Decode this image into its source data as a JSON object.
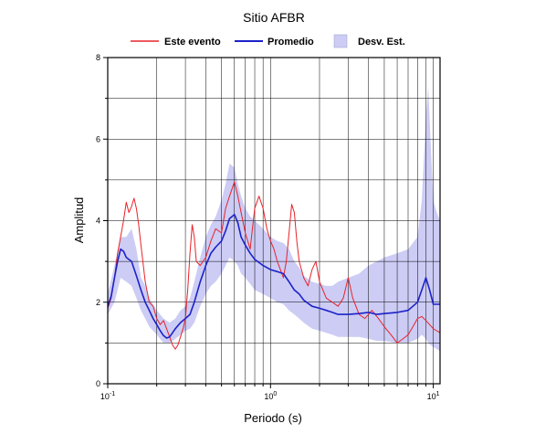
{
  "chart_data": {
    "type": "line",
    "title": "Sitio AFBR",
    "xlabel": "Periodo (s)",
    "ylabel": "Amplitud",
    "x_scale": "log",
    "xlim": [
      0.1,
      11
    ],
    "ylim": [
      0,
      8
    ],
    "grid": true,
    "legend_position": "top",
    "x_ticks": [
      {
        "value": 0.1,
        "base": "10",
        "exp": "-1"
      },
      {
        "value": 1,
        "base": "10",
        "exp": "0"
      },
      {
        "value": 10,
        "base": "10",
        "exp": "1"
      }
    ],
    "y_ticks": [
      "0",
      "2",
      "4",
      "6",
      "8"
    ],
    "series": [
      {
        "name": "Este evento",
        "kind": "line",
        "color": "#e8232a",
        "points": [
          [
            0.1,
            1.85
          ],
          [
            0.105,
            2.1
          ],
          [
            0.11,
            2.6
          ],
          [
            0.115,
            3.2
          ],
          [
            0.12,
            3.6
          ],
          [
            0.125,
            4.0
          ],
          [
            0.13,
            4.45
          ],
          [
            0.135,
            4.2
          ],
          [
            0.14,
            4.35
          ],
          [
            0.145,
            4.55
          ],
          [
            0.15,
            4.3
          ],
          [
            0.155,
            3.9
          ],
          [
            0.16,
            3.4
          ],
          [
            0.17,
            2.5
          ],
          [
            0.18,
            2.0
          ],
          [
            0.19,
            1.9
          ],
          [
            0.2,
            1.6
          ],
          [
            0.21,
            1.45
          ],
          [
            0.22,
            1.55
          ],
          [
            0.23,
            1.35
          ],
          [
            0.24,
            1.15
          ],
          [
            0.25,
            0.95
          ],
          [
            0.26,
            0.85
          ],
          [
            0.27,
            0.95
          ],
          [
            0.28,
            1.15
          ],
          [
            0.29,
            1.35
          ],
          [
            0.3,
            1.6
          ],
          [
            0.31,
            2.3
          ],
          [
            0.32,
            3.2
          ],
          [
            0.33,
            3.9
          ],
          [
            0.34,
            3.6
          ],
          [
            0.35,
            3.0
          ],
          [
            0.37,
            2.9
          ],
          [
            0.4,
            3.1
          ],
          [
            0.43,
            3.5
          ],
          [
            0.46,
            3.8
          ],
          [
            0.5,
            3.7
          ],
          [
            0.53,
            4.3
          ],
          [
            0.56,
            4.6
          ],
          [
            0.6,
            4.95
          ],
          [
            0.63,
            4.6
          ],
          [
            0.66,
            4.2
          ],
          [
            0.7,
            3.7
          ],
          [
            0.75,
            3.3
          ],
          [
            0.8,
            4.3
          ],
          [
            0.85,
            4.6
          ],
          [
            0.9,
            4.3
          ],
          [
            0.95,
            3.8
          ],
          [
            1.0,
            3.5
          ],
          [
            1.05,
            3.3
          ],
          [
            1.1,
            3.0
          ],
          [
            1.15,
            2.8
          ],
          [
            1.2,
            2.6
          ],
          [
            1.25,
            3.0
          ],
          [
            1.3,
            3.7
          ],
          [
            1.35,
            4.4
          ],
          [
            1.4,
            4.2
          ],
          [
            1.45,
            3.5
          ],
          [
            1.5,
            3.0
          ],
          [
            1.6,
            2.6
          ],
          [
            1.7,
            2.4
          ],
          [
            1.8,
            2.8
          ],
          [
            1.9,
            3.0
          ],
          [
            2.0,
            2.5
          ],
          [
            2.2,
            2.1
          ],
          [
            2.4,
            2.0
          ],
          [
            2.6,
            1.9
          ],
          [
            2.8,
            2.1
          ],
          [
            3.0,
            2.6
          ],
          [
            3.2,
            2.1
          ],
          [
            3.5,
            1.7
          ],
          [
            3.8,
            1.6
          ],
          [
            4.2,
            1.8
          ],
          [
            4.6,
            1.6
          ],
          [
            5.0,
            1.4
          ],
          [
            5.5,
            1.2
          ],
          [
            6.0,
            1.0
          ],
          [
            6.5,
            1.1
          ],
          [
            7.0,
            1.2
          ],
          [
            7.5,
            1.4
          ],
          [
            8.0,
            1.6
          ],
          [
            8.5,
            1.65
          ],
          [
            9.0,
            1.55
          ],
          [
            9.5,
            1.45
          ],
          [
            10.0,
            1.35
          ],
          [
            10.5,
            1.3
          ],
          [
            11.0,
            1.25
          ]
        ]
      },
      {
        "name": "Promedio",
        "kind": "line",
        "color": "#1c22c8",
        "points": [
          [
            0.1,
            1.9
          ],
          [
            0.105,
            2.15
          ],
          [
            0.11,
            2.6
          ],
          [
            0.115,
            3.0
          ],
          [
            0.12,
            3.3
          ],
          [
            0.125,
            3.25
          ],
          [
            0.13,
            3.1
          ],
          [
            0.14,
            3.0
          ],
          [
            0.15,
            2.65
          ],
          [
            0.16,
            2.3
          ],
          [
            0.17,
            2.0
          ],
          [
            0.18,
            1.8
          ],
          [
            0.19,
            1.6
          ],
          [
            0.2,
            1.45
          ],
          [
            0.21,
            1.3
          ],
          [
            0.22,
            1.18
          ],
          [
            0.23,
            1.12
          ],
          [
            0.24,
            1.15
          ],
          [
            0.25,
            1.25
          ],
          [
            0.26,
            1.35
          ],
          [
            0.28,
            1.5
          ],
          [
            0.3,
            1.6
          ],
          [
            0.32,
            1.7
          ],
          [
            0.34,
            2.0
          ],
          [
            0.37,
            2.5
          ],
          [
            0.4,
            2.9
          ],
          [
            0.43,
            3.2
          ],
          [
            0.46,
            3.35
          ],
          [
            0.5,
            3.5
          ],
          [
            0.53,
            3.75
          ],
          [
            0.56,
            4.05
          ],
          [
            0.6,
            4.15
          ],
          [
            0.63,
            3.95
          ],
          [
            0.66,
            3.6
          ],
          [
            0.7,
            3.4
          ],
          [
            0.75,
            3.2
          ],
          [
            0.8,
            3.05
          ],
          [
            0.9,
            2.9
          ],
          [
            1.0,
            2.8
          ],
          [
            1.1,
            2.75
          ],
          [
            1.2,
            2.7
          ],
          [
            1.3,
            2.5
          ],
          [
            1.4,
            2.3
          ],
          [
            1.5,
            2.2
          ],
          [
            1.6,
            2.05
          ],
          [
            1.8,
            1.9
          ],
          [
            2.0,
            1.85
          ],
          [
            2.2,
            1.8
          ],
          [
            2.4,
            1.75
          ],
          [
            2.6,
            1.7
          ],
          [
            3.0,
            1.7
          ],
          [
            3.5,
            1.72
          ],
          [
            4.0,
            1.75
          ],
          [
            4.5,
            1.7
          ],
          [
            5.0,
            1.72
          ],
          [
            6.0,
            1.75
          ],
          [
            7.0,
            1.8
          ],
          [
            8.0,
            2.0
          ],
          [
            8.5,
            2.3
          ],
          [
            9.0,
            2.6
          ],
          [
            9.5,
            2.3
          ],
          [
            10.0,
            1.95
          ],
          [
            11.0,
            1.95
          ]
        ]
      },
      {
        "name": "Desv. Est.",
        "kind": "band",
        "color": "#ccccf5",
        "points": [
          [
            0.1,
            1.7,
            2.2
          ],
          [
            0.11,
            2.0,
            2.9
          ],
          [
            0.12,
            2.6,
            3.6
          ],
          [
            0.13,
            2.5,
            3.6
          ],
          [
            0.14,
            2.4,
            3.8
          ],
          [
            0.15,
            2.1,
            3.3
          ],
          [
            0.16,
            1.8,
            2.6
          ],
          [
            0.17,
            1.6,
            2.4
          ],
          [
            0.18,
            1.4,
            2.1
          ],
          [
            0.2,
            1.2,
            1.8
          ],
          [
            0.22,
            1.0,
            1.6
          ],
          [
            0.24,
            1.0,
            1.5
          ],
          [
            0.26,
            1.1,
            1.6
          ],
          [
            0.28,
            1.2,
            1.8
          ],
          [
            0.3,
            1.3,
            1.9
          ],
          [
            0.32,
            1.35,
            2.1
          ],
          [
            0.34,
            1.5,
            2.5
          ],
          [
            0.37,
            1.9,
            3.1
          ],
          [
            0.4,
            2.2,
            3.6
          ],
          [
            0.43,
            2.4,
            3.9
          ],
          [
            0.46,
            2.5,
            4.1
          ],
          [
            0.5,
            2.7,
            4.5
          ],
          [
            0.53,
            2.9,
            4.9
          ],
          [
            0.56,
            3.1,
            5.4
          ],
          [
            0.6,
            3.0,
            5.3
          ],
          [
            0.63,
            2.9,
            4.9
          ],
          [
            0.66,
            2.7,
            4.6
          ],
          [
            0.7,
            2.6,
            4.3
          ],
          [
            0.75,
            2.45,
            4.1
          ],
          [
            0.8,
            2.3,
            4.0
          ],
          [
            0.9,
            2.2,
            3.8
          ],
          [
            1.0,
            2.1,
            3.6
          ],
          [
            1.1,
            2.0,
            3.5
          ],
          [
            1.2,
            1.95,
            3.45
          ],
          [
            1.3,
            1.8,
            3.3
          ],
          [
            1.4,
            1.7,
            3.0
          ],
          [
            1.5,
            1.6,
            2.85
          ],
          [
            1.6,
            1.5,
            2.65
          ],
          [
            1.8,
            1.35,
            2.5
          ],
          [
            2.0,
            1.3,
            2.45
          ],
          [
            2.2,
            1.25,
            2.4
          ],
          [
            2.4,
            1.2,
            2.4
          ],
          [
            2.6,
            1.15,
            2.5
          ],
          [
            3.0,
            1.15,
            2.6
          ],
          [
            3.5,
            1.15,
            2.7
          ],
          [
            4.0,
            1.1,
            2.9
          ],
          [
            4.5,
            1.05,
            3.0
          ],
          [
            5.0,
            1.05,
            3.1
          ],
          [
            6.0,
            1.0,
            3.2
          ],
          [
            7.0,
            1.0,
            3.3
          ],
          [
            8.0,
            1.1,
            3.6
          ],
          [
            8.5,
            1.2,
            4.5
          ],
          [
            9.0,
            1.1,
            6.5
          ],
          [
            9.3,
            1.0,
            7.3
          ],
          [
            9.6,
            0.95,
            6.0
          ],
          [
            10.0,
            0.9,
            4.5
          ],
          [
            10.5,
            0.85,
            4.2
          ],
          [
            11.0,
            0.8,
            4.0
          ]
        ]
      }
    ]
  }
}
